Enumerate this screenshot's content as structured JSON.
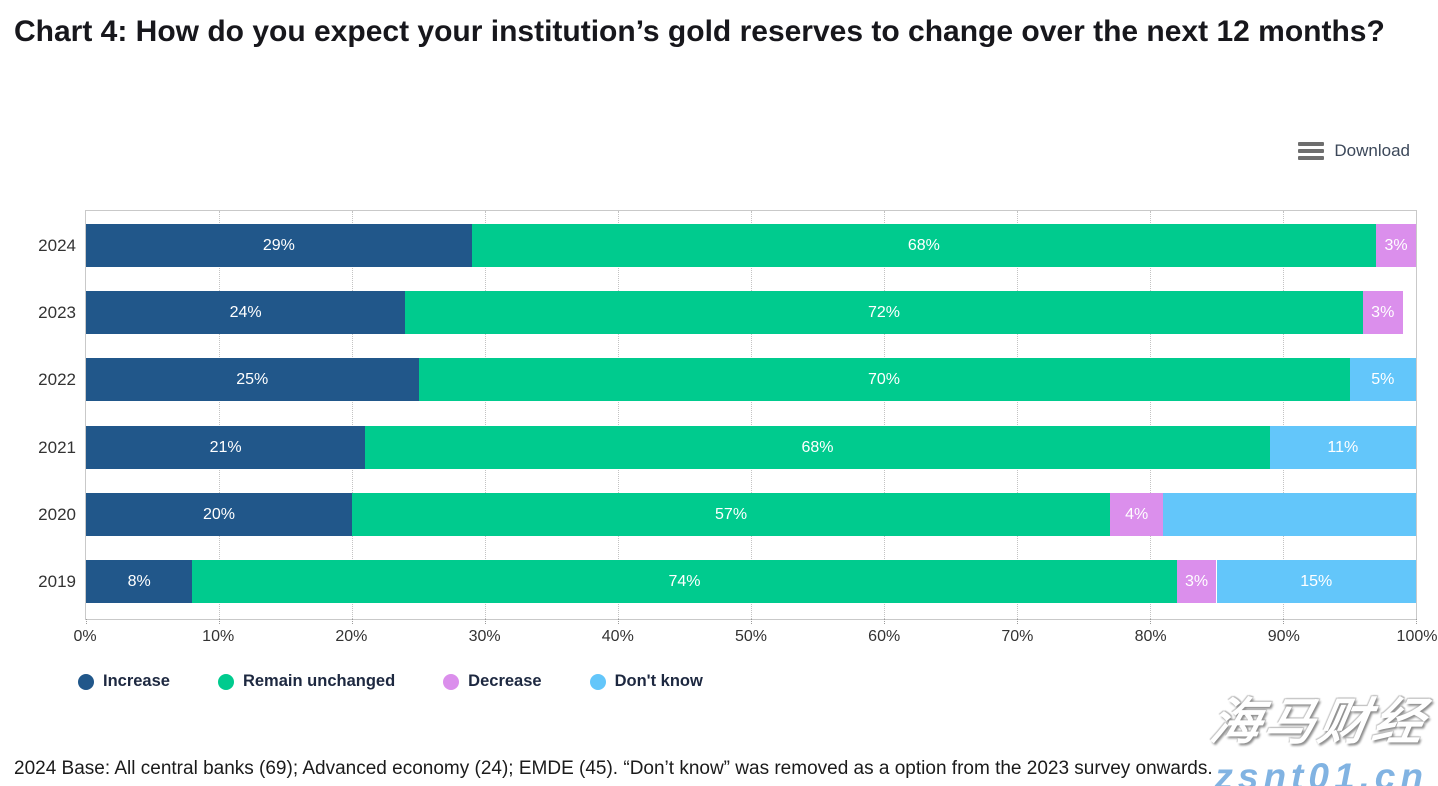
{
  "title": "Chart 4: How do you expect your institution’s gold reserves to change over the next 12 months?",
  "toolbar": {
    "download_label": "Download"
  },
  "chart_data": {
    "type": "bar",
    "orientation": "horizontal",
    "stacked": true,
    "title": "Chart 4: How do you expect your institution’s gold reserves to change over the next 12 months?",
    "categories": [
      "2024",
      "2023",
      "2022",
      "2021",
      "2020",
      "2019"
    ],
    "series": [
      {
        "name": "Increase",
        "color": "#21578A",
        "values": [
          29,
          24,
          25,
          21,
          20,
          8
        ]
      },
      {
        "name": "Remain unchanged",
        "color": "#00CB8E",
        "values": [
          68,
          72,
          70,
          68,
          57,
          74
        ]
      },
      {
        "name": "Decrease",
        "color": "#DB8FEC",
        "values": [
          3,
          3,
          0,
          0,
          4,
          3
        ]
      },
      {
        "name": "Don't know",
        "color": "#63C6FA",
        "values": [
          0,
          0,
          5,
          11,
          19,
          15
        ]
      }
    ],
    "bar_labels": [
      [
        "29%",
        "68%",
        "3%",
        ""
      ],
      [
        "24%",
        "72%",
        "3%",
        ""
      ],
      [
        "25%",
        "70%",
        "",
        "5%"
      ],
      [
        "21%",
        "68%",
        "",
        "11%"
      ],
      [
        "20%",
        "57%",
        "4%",
        ""
      ],
      [
        "8%",
        "74%",
        "3%",
        "15%"
      ]
    ],
    "xticks": [
      "0%",
      "10%",
      "20%",
      "30%",
      "40%",
      "50%",
      "60%",
      "70%",
      "80%",
      "90%",
      "100%"
    ],
    "xlim": [
      0,
      100
    ],
    "grid": "vertical-dotted",
    "legend_position": "bottom"
  },
  "footer": {
    "note": "2024 Base: All central banks (69); Advanced economy (24); EMDE (45). “Don’t know” was removed as a option from the 2023 survey onwards."
  },
  "watermark": {
    "line1": "海马财经",
    "line2": "zsnt01.cn"
  }
}
